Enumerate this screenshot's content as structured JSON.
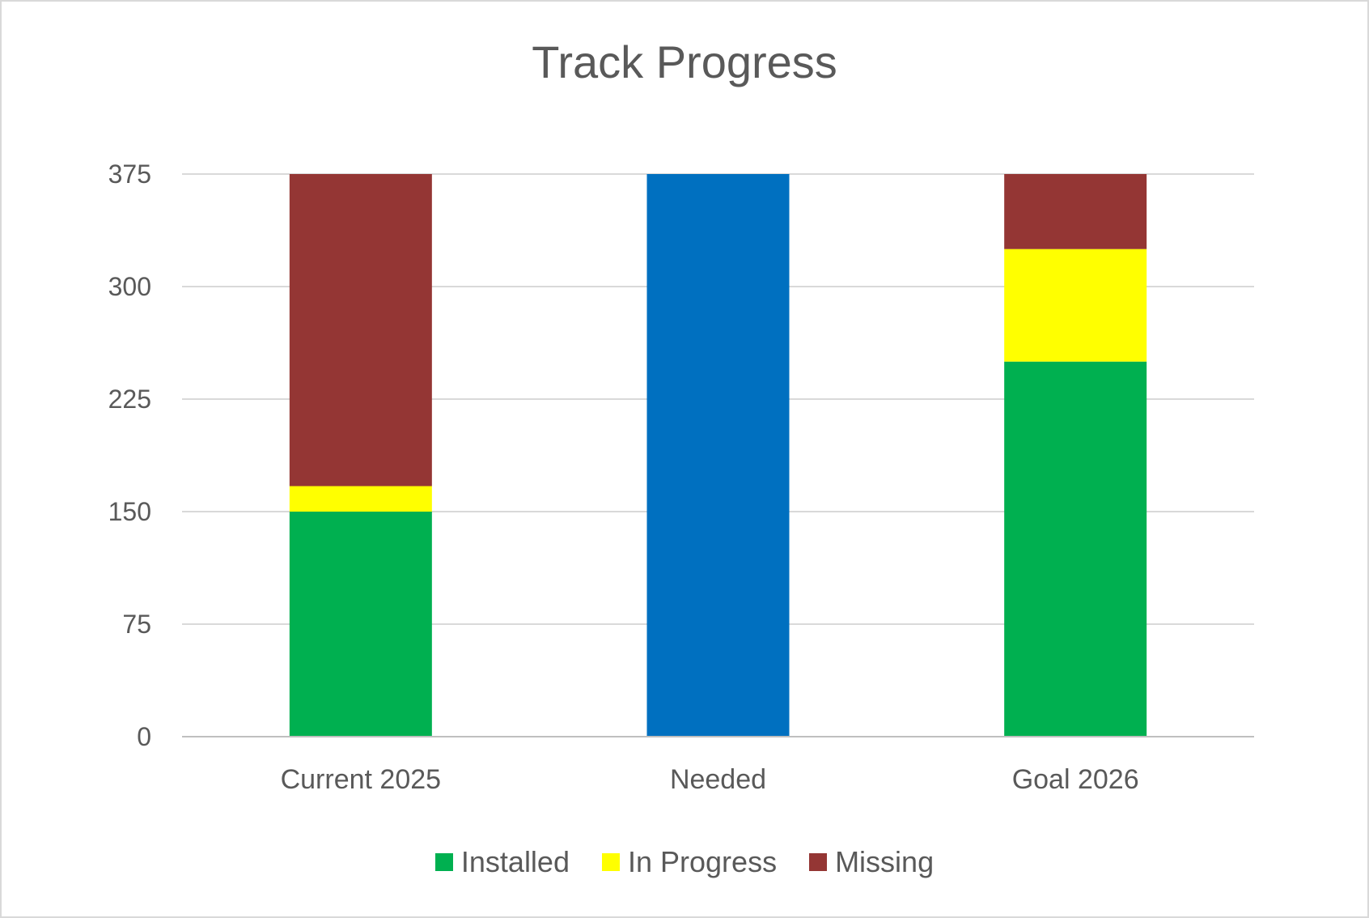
{
  "chart_data": {
    "type": "bar",
    "stacked": true,
    "title": "Track Progress",
    "categories": [
      "Current 2025",
      "Needed",
      "Goal 2026"
    ],
    "ylim": [
      0,
      375
    ],
    "yticks": [
      0,
      75,
      150,
      225,
      300,
      375
    ],
    "grid": true,
    "legend_position": "bottom",
    "series": [
      {
        "name": "Installed",
        "color": "#00b050",
        "values": [
          150,
          0,
          250
        ]
      },
      {
        "name": "In Progress",
        "color": "#ffff00",
        "values": [
          17,
          0,
          75
        ]
      },
      {
        "name": "Missing",
        "color": "#943634",
        "values": [
          208,
          0,
          50
        ]
      },
      {
        "color": "#0070c0",
        "values": [
          0,
          375,
          0
        ]
      }
    ]
  }
}
